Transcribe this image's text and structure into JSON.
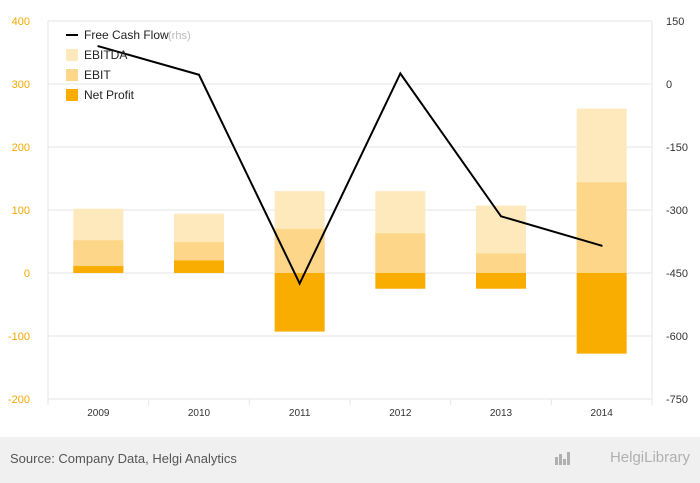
{
  "chart_data": {
    "type": "bar",
    "categories": [
      "2009",
      "2010",
      "2011",
      "2012",
      "2013",
      "2014"
    ],
    "stacked_overlay": true,
    "series": [
      {
        "name": "EBITDA",
        "values": [
          102,
          94,
          130,
          130,
          107,
          261
        ],
        "color": "#fee9bd"
      },
      {
        "name": "EBIT",
        "values": [
          52,
          49,
          70,
          63,
          31,
          144
        ],
        "color": "#fdd68a"
      },
      {
        "name": "Net Profit",
        "values": [
          11,
          20,
          -93,
          -25,
          -25,
          -128
        ],
        "color": "#f8ad00"
      }
    ],
    "line_series": {
      "name": "Free Cash Flow",
      "suffix": "(rhs)",
      "values": [
        90,
        22,
        -475,
        25,
        -315,
        -385
      ],
      "color": "#000000",
      "axis": "right"
    },
    "ylim_left": [
      -200,
      400
    ],
    "yticks_left": [
      "400",
      "300",
      "200",
      "100",
      "0",
      "-100",
      "-200"
    ],
    "ylim_right": [
      -750,
      150
    ],
    "yticks_right": [
      "150",
      "0",
      "-150",
      "-300",
      "-450",
      "-600",
      "-750"
    ],
    "grid": true,
    "legend_position": "top-left"
  },
  "footer": {
    "source": "Source: Company Data, Helgi Analytics",
    "brand": "HelgiLibrary"
  },
  "colors": {
    "left_axis_text": "#f0a800",
    "right_axis_text": "#333333",
    "grid": "#e6e6e6",
    "footer_bg": "#f0f0f0"
  }
}
